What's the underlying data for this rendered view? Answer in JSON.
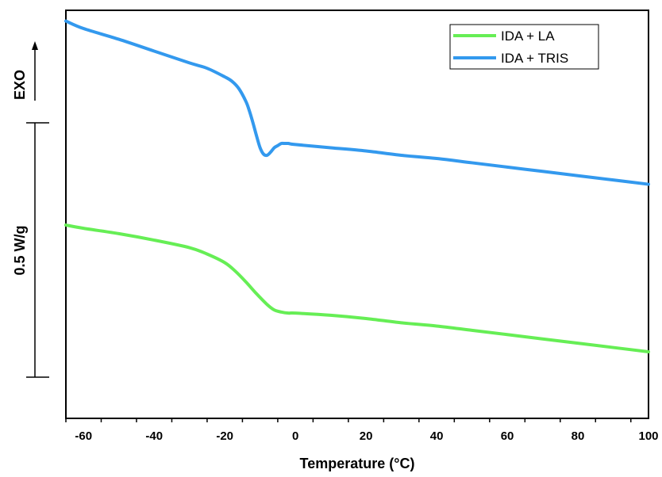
{
  "chart_data": {
    "type": "line",
    "xlabel": "Temperature (°C)",
    "xlim": [
      -65,
      100
    ],
    "xticks": [
      -60,
      -40,
      -20,
      0,
      20,
      40,
      60,
      80,
      100
    ],
    "xtick_labels": [
      "-60",
      "-40",
      "-20",
      "0",
      "20",
      "40",
      "60",
      "80",
      "100"
    ],
    "y_annotations": {
      "exo_label": "EXO",
      "scale_label": "0.5 W/g",
      "scale_value_wg": 0.5
    },
    "ylim": [
      -1.8,
      2.0
    ],
    "grid": false,
    "legend_position": "top-right",
    "series": [
      {
        "name": "IDA + LA",
        "color": "#66ee55",
        "x": [
          -65,
          -60,
          -50,
          -40,
          -30,
          -25,
          -20,
          -17,
          -14,
          -11,
          -8,
          -6,
          -4,
          -2,
          0,
          10,
          20,
          30,
          40,
          50,
          60,
          70,
          80,
          90,
          100
        ],
        "y": [
          0.0,
          -0.03,
          -0.08,
          -0.14,
          -0.21,
          -0.27,
          -0.35,
          -0.43,
          -0.53,
          -0.64,
          -0.74,
          -0.79,
          -0.81,
          -0.82,
          -0.82,
          -0.84,
          -0.87,
          -0.91,
          -0.94,
          -0.98,
          -1.02,
          -1.06,
          -1.1,
          -1.14,
          -1.18
        ]
      },
      {
        "name": "IDA + TRIS",
        "color": "#3399ee",
        "x": [
          -65,
          -60,
          -50,
          -40,
          -30,
          -25,
          -20,
          -18,
          -16,
          -14,
          -13,
          -12,
          -11,
          -10,
          -9,
          -8,
          -7,
          -6,
          -5,
          -4,
          -3,
          -2,
          0,
          10,
          20,
          30,
          40,
          50,
          60,
          70,
          80,
          90,
          100
        ],
        "y": [
          1.9,
          1.83,
          1.73,
          1.62,
          1.51,
          1.46,
          1.38,
          1.34,
          1.27,
          1.15,
          1.06,
          0.95,
          0.83,
          0.72,
          0.66,
          0.65,
          0.68,
          0.72,
          0.74,
          0.76,
          0.76,
          0.76,
          0.75,
          0.72,
          0.69,
          0.65,
          0.62,
          0.58,
          0.54,
          0.5,
          0.46,
          0.42,
          0.38
        ]
      }
    ]
  }
}
